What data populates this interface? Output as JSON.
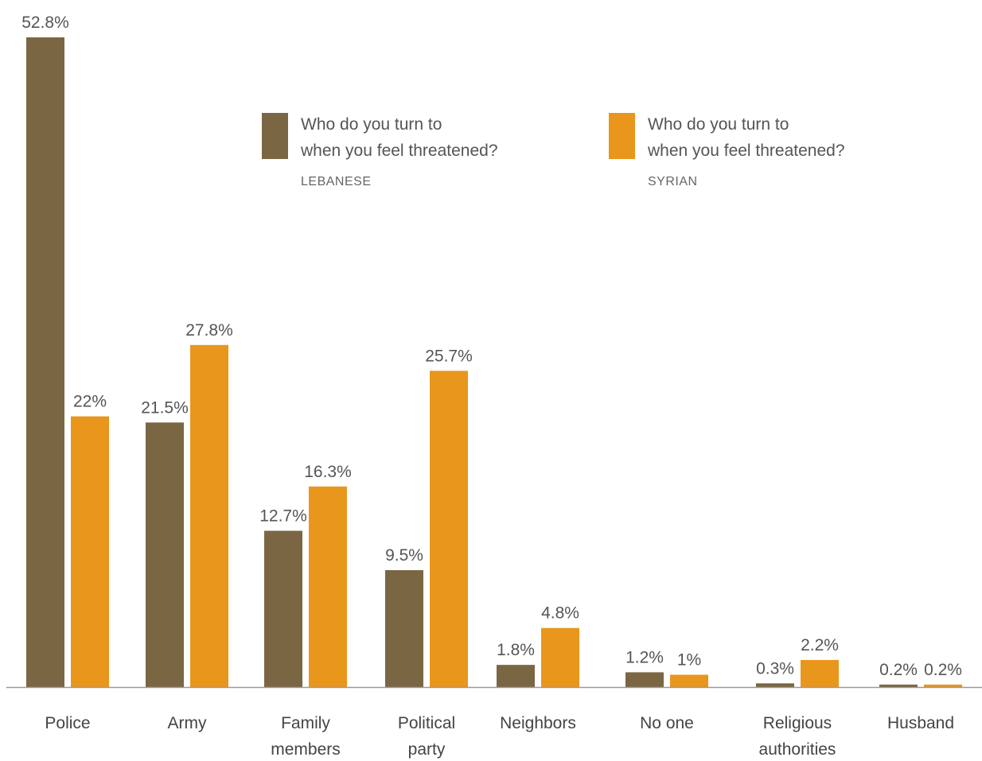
{
  "chart_data": {
    "type": "bar",
    "categories": [
      [
        "Police"
      ],
      [
        "Army"
      ],
      [
        "Family",
        "members"
      ],
      [
        "Political",
        "party"
      ],
      [
        "Neighbors"
      ],
      [
        "No one"
      ],
      [
        "Religious",
        "authorities"
      ],
      [
        "Husband"
      ]
    ],
    "series": [
      {
        "name": "LEBANESE",
        "legend_text": [
          "Who do you turn to",
          "when you feel threatened?"
        ],
        "color": "#7a6642",
        "values": [
          52.8,
          21.5,
          12.7,
          9.5,
          1.8,
          1.2,
          0.3,
          0.2
        ],
        "labels": [
          "52.8%",
          "21.5%",
          "12.7%",
          "9.5%",
          "1.8%",
          "1.2%",
          "0.3%",
          "0.2%"
        ]
      },
      {
        "name": "SYRIAN",
        "legend_text": [
          "Who do you turn to",
          "when you feel threatened?"
        ],
        "color": "#e8961c",
        "values": [
          22,
          27.8,
          16.3,
          25.7,
          4.8,
          1,
          2.2,
          0.2
        ],
        "labels": [
          "22%",
          "27.8%",
          "16.3%",
          "25.7%",
          "4.8%",
          "1%",
          "2.2%",
          "0.2%"
        ]
      }
    ],
    "ylim": [
      0,
      52.8
    ],
    "grid": false,
    "legend_position": "top-center",
    "axis_color": "#999999"
  }
}
